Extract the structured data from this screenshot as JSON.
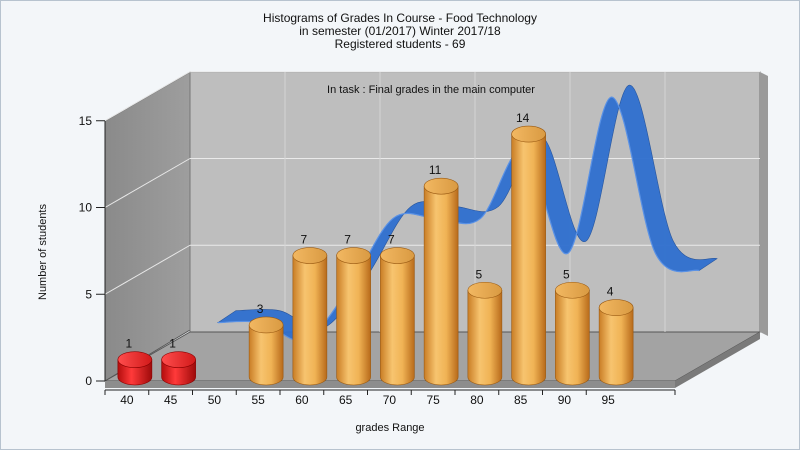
{
  "chart_data": {
    "type": "bar",
    "title_lines": [
      "Histograms of Grades  In Course - Food Technology",
      "in semester  (01/2017) Winter 2017/18",
      "Registered students - 69"
    ],
    "annotation": "In task : Final grades in the main computer",
    "xlabel": "grades Range",
    "ylabel": "Number of students",
    "categories": [
      "40",
      "45",
      "50",
      "55",
      "60",
      "65",
      "70",
      "75",
      "80",
      "85",
      "90",
      "95"
    ],
    "values": [
      1,
      1,
      0,
      3,
      7,
      7,
      7,
      11,
      5,
      14,
      5,
      4
    ],
    "value_labels": [
      "1",
      "1",
      "",
      "3",
      "7",
      "7",
      "7",
      "11",
      "5",
      "14",
      "5",
      "4"
    ],
    "bar_colors": [
      "#e01818",
      "#e01818",
      "",
      "#e2a04a",
      "#e2a04a",
      "#e2a04a",
      "#e2a04a",
      "#e2a04a",
      "#e2a04a",
      "#e2a04a",
      "#e2a04a",
      "#e2a04a"
    ],
    "yticks": [
      "0",
      "5",
      "10",
      "15"
    ],
    "ylim": [
      0,
      15
    ],
    "trend_color": "#2f6fcf",
    "grid": true,
    "legend": false
  }
}
